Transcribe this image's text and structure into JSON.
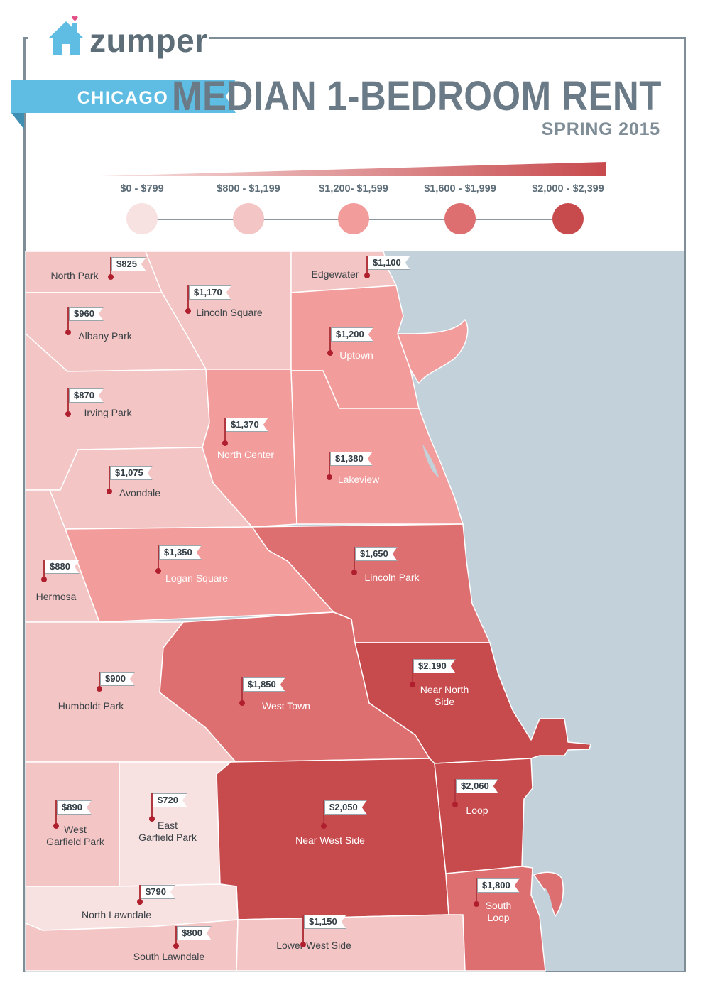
{
  "brand": {
    "name": "zumper"
  },
  "banner": {
    "city": "CHICAGO"
  },
  "header": {
    "title": "MEDIAN 1-BEDROOM RENT",
    "subtitle": "SPRING 2015"
  },
  "colors": {
    "lake": "#c3d1da",
    "banner": "#5fbde3",
    "tier1": "#f8e1e1",
    "tier2": "#f3c5c4",
    "tier3": "#f29c9b",
    "tier4": "#de6f70",
    "tier5": "#c74a4d",
    "borders": "#ffffff",
    "label_dark": "#3b4247",
    "label_light": "#ffffff"
  },
  "legend": [
    {
      "range": "$0 - $799",
      "color": "#f8e1e1"
    },
    {
      "range": "$800 - $1,199",
      "color": "#f3c5c4"
    },
    {
      "range": "$1,200- $1,599",
      "color": "#f29c9b"
    },
    {
      "range": "$1,600 - $1,999",
      "color": "#de6f70"
    },
    {
      "range": "$2,000 - $2,399",
      "color": "#c74a4d"
    }
  ],
  "neighborhoods": [
    {
      "name": "North Park",
      "rent": "$825"
    },
    {
      "name": "Lincoln Square",
      "rent": "$1,170"
    },
    {
      "name": "Edgewater",
      "rent": "$1,100"
    },
    {
      "name": "Albany Park",
      "rent": "$960"
    },
    {
      "name": "Uptown",
      "rent": "$1,200"
    },
    {
      "name": "Irving Park",
      "rent": "$870"
    },
    {
      "name": "North Center",
      "rent": "$1,370"
    },
    {
      "name": "Lakeview",
      "rent": "$1,380"
    },
    {
      "name": "Avondale",
      "rent": "$1,075"
    },
    {
      "name": "Hermosa",
      "rent": "$880"
    },
    {
      "name": "Logan Square",
      "rent": "$1,350"
    },
    {
      "name": "Lincoln Park",
      "rent": "$1,650"
    },
    {
      "name": "Humboldt Park",
      "rent": "$900"
    },
    {
      "name": "West Town",
      "rent": "$1,850"
    },
    {
      "name": "Near North\nSide",
      "rent": "$2,190"
    },
    {
      "name": "West\nGarfield Park",
      "rent": "$890"
    },
    {
      "name": "East\nGarfield Park",
      "rent": "$720"
    },
    {
      "name": "Near West Side",
      "rent": "$2,050"
    },
    {
      "name": "Loop",
      "rent": "$2,060"
    },
    {
      "name": "North Lawndale",
      "rent": "$790"
    },
    {
      "name": "South Lawndale",
      "rent": "$800"
    },
    {
      "name": "Lower West Side",
      "rent": "$1,150"
    },
    {
      "name": "South\nLoop",
      "rent": "$1,800"
    }
  ]
}
